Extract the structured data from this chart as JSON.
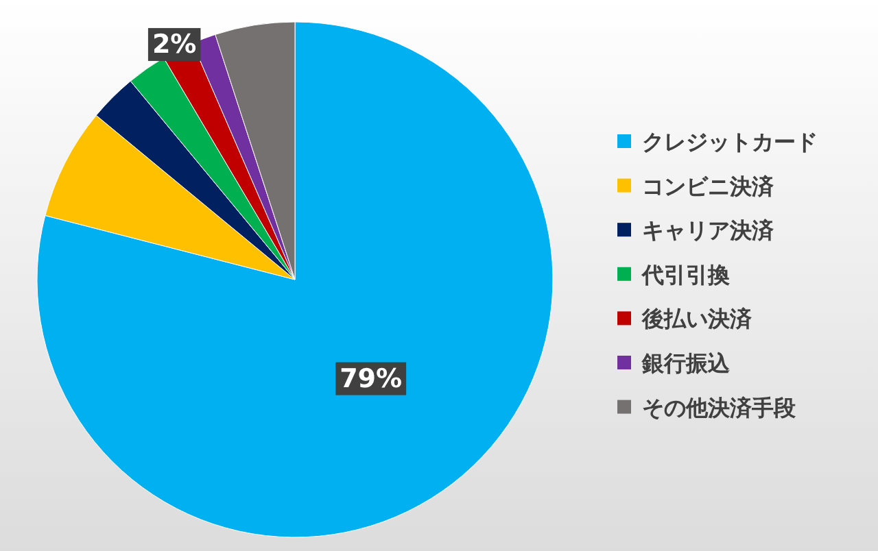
{
  "chart_data": {
    "type": "pie",
    "categories": [
      "クレジットカード",
      "コンビニ決済",
      "キャリア決済",
      "代引引換",
      "後払い決済",
      "銀行振込",
      "その他決済手段"
    ],
    "values": [
      79,
      7,
      3,
      2.5,
      2,
      1.5,
      5
    ],
    "colors": [
      "#00b0f0",
      "#ffc000",
      "#002060",
      "#00b050",
      "#c00000",
      "#7030a0",
      "#767171"
    ],
    "value_labels": [
      "79%",
      null,
      null,
      null,
      "2%",
      null,
      null
    ],
    "legend": "right"
  }
}
